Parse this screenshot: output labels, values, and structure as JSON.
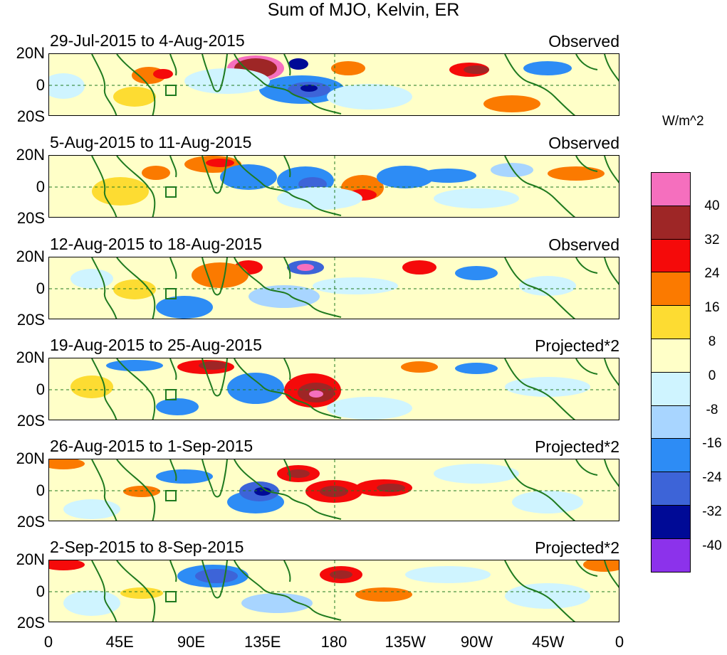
{
  "title": "Sum of MJO, Kelvin, ER",
  "units": "W/m^2",
  "panels": [
    {
      "dates": "29-Jul-2015 to 4-Aug-2015",
      "tag": "Observed"
    },
    {
      "dates": "5-Aug-2015 to 11-Aug-2015",
      "tag": "Observed"
    },
    {
      "dates": "12-Aug-2015 to 18-Aug-2015",
      "tag": "Observed"
    },
    {
      "dates": "19-Aug-2015 to 25-Aug-2015",
      "tag": "Projected*2"
    },
    {
      "dates": "26-Aug-2015 to 1-Sep-2015",
      "tag": "Projected*2"
    },
    {
      "dates": "2-Sep-2015 to 8-Sep-2015",
      "tag": "Projected*2"
    }
  ],
  "lat_labels": [
    "20N",
    "0",
    "20S"
  ],
  "lon_labels": [
    "0",
    "45E",
    "90E",
    "135E",
    "180",
    "135W",
    "90W",
    "45W",
    "0"
  ],
  "colorbar": {
    "colors": [
      "#f56fbe",
      "#9e2626",
      "#f50a0a",
      "#fb7a00",
      "#fddc32",
      "#ffffc8",
      "#cff4ff",
      "#a8d5ff",
      "#2d8cf5",
      "#3d64d8",
      "#000a96",
      "#8c32eb"
    ],
    "ticks": [
      "40",
      "32",
      "24",
      "16",
      "8",
      "0",
      "-8",
      "-16",
      "-24",
      "-32",
      "-40"
    ]
  },
  "colors": {
    "coastline": "#1f7a1f",
    "reference_lines": "#1f7a1f"
  }
}
